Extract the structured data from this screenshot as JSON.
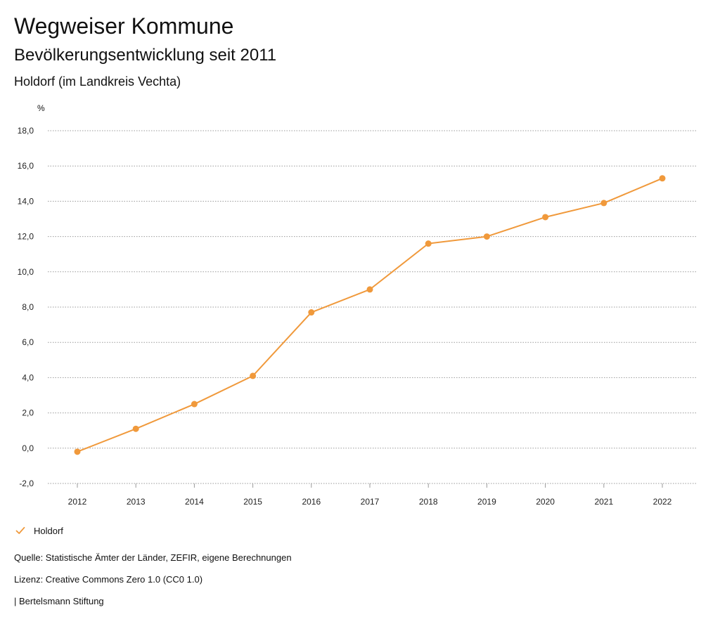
{
  "header": {
    "title": "Wegweiser Kommune",
    "subtitle": "Bevölkerungsentwicklung seit 2011",
    "region": "Holdorf (im Landkreis Vechta)"
  },
  "chart_data": {
    "type": "line",
    "title": "Bevölkerungsentwicklung seit 2011",
    "ylabel": "%",
    "xlabel": "",
    "categories": [
      "2012",
      "2013",
      "2014",
      "2015",
      "2016",
      "2017",
      "2018",
      "2019",
      "2020",
      "2021",
      "2022"
    ],
    "series": [
      {
        "name": "Holdorf",
        "color": "#f0993b",
        "values": [
          -0.2,
          1.1,
          2.5,
          4.1,
          7.7,
          9.0,
          11.6,
          12.0,
          13.1,
          13.9,
          15.3
        ]
      }
    ],
    "yticks": [
      "-2,0",
      "0,0",
      "2,0",
      "4,0",
      "6,0",
      "8,0",
      "10,0",
      "12,0",
      "14,0",
      "16,0",
      "18,0"
    ],
    "ylim": [
      -2,
      18
    ],
    "grid": true,
    "legend_position": "bottom-left"
  },
  "footer": {
    "source": "Quelle: Statistische Ämter der Länder, ZEFIR, eigene Berechnungen",
    "license": "Lizenz: Creative Commons Zero 1.0 (CC0 1.0)",
    "brand": "| Bertelsmann Stiftung"
  }
}
